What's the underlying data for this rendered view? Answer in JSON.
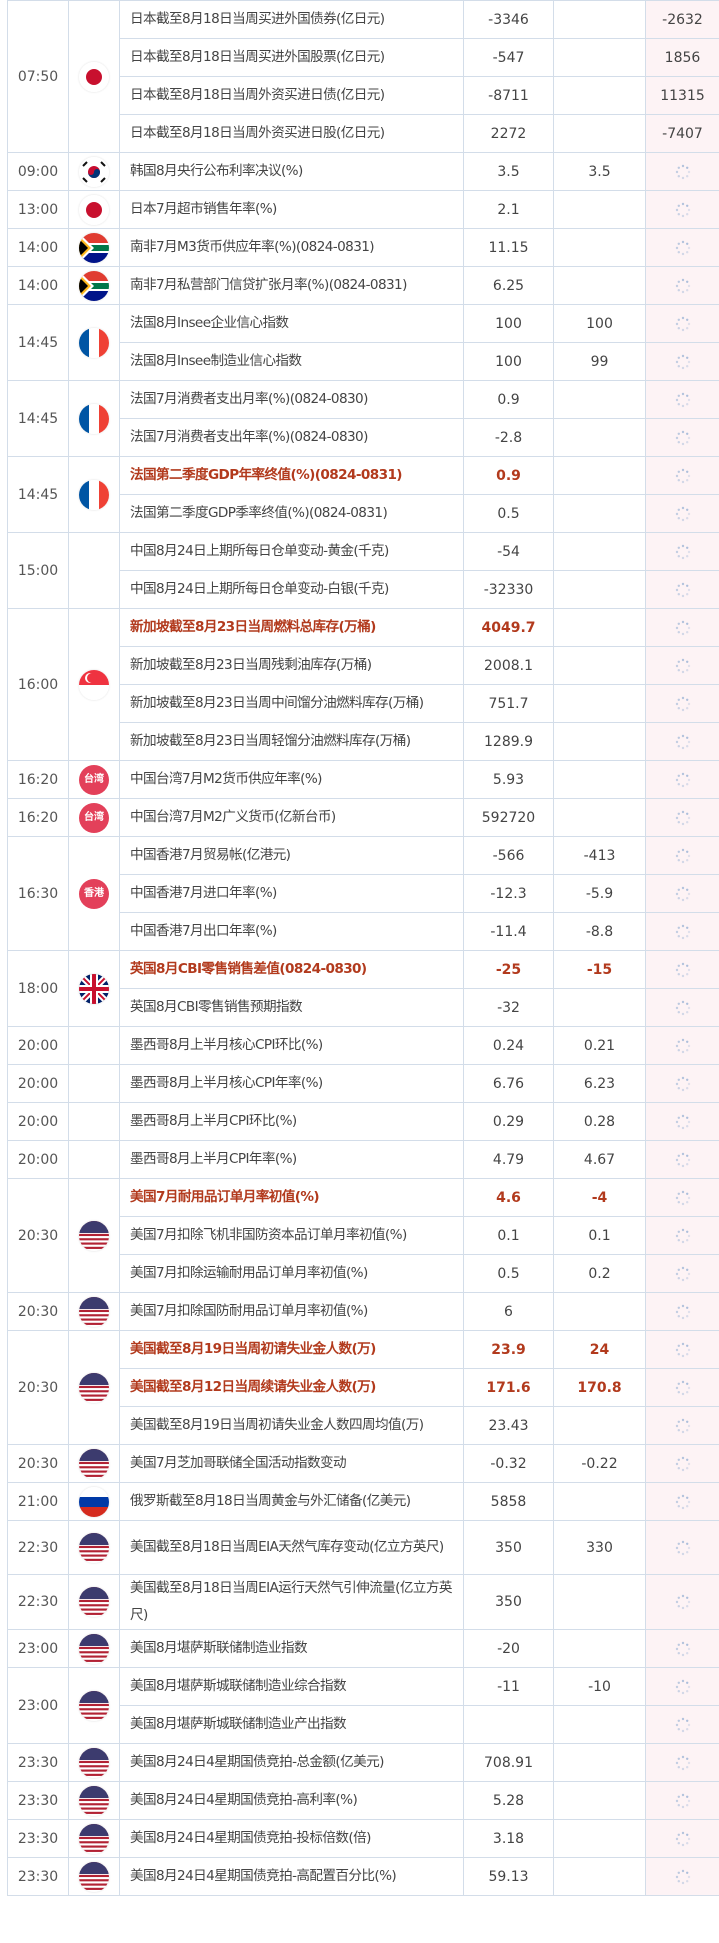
{
  "colors": {
    "important": "#b23a1d",
    "actual_bg": "#fdf3f5",
    "border": "#d3dde9",
    "badge": "#e3405a"
  },
  "pending_icon": "loading-spinner-icon",
  "groups": [
    {
      "time": "07:50",
      "flag": "japan",
      "rows": [
        {
          "name": "日本截至8月18日当周买进外国债券(亿日元)",
          "prev": "-3346",
          "forecast": "",
          "actual": "-2632"
        },
        {
          "name": "日本截至8月18日当周买进外国股票(亿日元)",
          "prev": "-547",
          "forecast": "",
          "actual": "1856"
        },
        {
          "name": "日本截至8月18日当周外资买进日债(亿日元)",
          "prev": "-8711",
          "forecast": "",
          "actual": "11315"
        },
        {
          "name": "日本截至8月18日当周外资买进日股(亿日元)",
          "prev": "2272",
          "forecast": "",
          "actual": "-7407"
        }
      ]
    },
    {
      "time": "09:00",
      "flag": "south-korea",
      "rows": [
        {
          "name": "韩国8月央行公布利率决议(%)",
          "prev": "3.5",
          "forecast": "3.5",
          "actual": ""
        }
      ]
    },
    {
      "time": "13:00",
      "flag": "japan",
      "rows": [
        {
          "name": "日本7月超市销售年率(%)",
          "prev": "2.1",
          "forecast": "",
          "actual": ""
        }
      ]
    },
    {
      "time": "14:00",
      "flag": "south-africa",
      "rows": [
        {
          "name": "南非7月M3货币供应年率(%)(0824-0831)",
          "prev": "11.15",
          "forecast": "",
          "actual": ""
        }
      ]
    },
    {
      "time": "14:00",
      "flag": "south-africa",
      "rows": [
        {
          "name": "南非7月私营部门信贷扩张月率(%)(0824-0831)",
          "prev": "6.25",
          "forecast": "",
          "actual": ""
        }
      ]
    },
    {
      "time": "14:45",
      "flag": "france",
      "rows": [
        {
          "name": "法国8月Insee企业信心指数",
          "prev": "100",
          "forecast": "100",
          "actual": ""
        },
        {
          "name": "法国8月Insee制造业信心指数",
          "prev": "100",
          "forecast": "99",
          "actual": ""
        }
      ]
    },
    {
      "time": "14:45",
      "flag": "france",
      "rows": [
        {
          "name": "法国7月消费者支出月率(%)(0824-0830)",
          "prev": "0.9",
          "forecast": "",
          "actual": ""
        },
        {
          "name": "法国7月消费者支出年率(%)(0824-0830)",
          "prev": "-2.8",
          "forecast": "",
          "actual": ""
        }
      ]
    },
    {
      "time": "14:45",
      "flag": "france",
      "rows": [
        {
          "name": "法国第二季度GDP年率终值(%)(0824-0831)",
          "prev": "0.9",
          "forecast": "",
          "actual": "",
          "important": true
        },
        {
          "name": "法国第二季度GDP季率终值(%)(0824-0831)",
          "prev": "0.5",
          "forecast": "",
          "actual": ""
        }
      ]
    },
    {
      "time": "15:00",
      "flag": "",
      "rows": [
        {
          "name": "中国8月24日上期所每日仓单变动-黄金(千克)",
          "prev": "-54",
          "forecast": "",
          "actual": ""
        },
        {
          "name": "中国8月24日上期所每日仓单变动-白银(千克)",
          "prev": "-32330",
          "forecast": "",
          "actual": ""
        }
      ]
    },
    {
      "time": "16:00",
      "flag": "singapore",
      "rows": [
        {
          "name": "新加坡截至8月23日当周燃料总库存(万桶)",
          "prev": "4049.7",
          "forecast": "",
          "actual": "",
          "important": true
        },
        {
          "name": "新加坡截至8月23日当周残剩油库存(万桶)",
          "prev": "2008.1",
          "forecast": "",
          "actual": ""
        },
        {
          "name": "新加坡截至8月23日当周中间馏分油燃料库存(万桶)",
          "prev": "751.7",
          "forecast": "",
          "actual": ""
        },
        {
          "name": "新加坡截至8月23日当周轻馏分油燃料库存(万桶)",
          "prev": "1289.9",
          "forecast": "",
          "actual": ""
        }
      ]
    },
    {
      "time": "16:20",
      "flag": "badge",
      "badge": "台湾",
      "rows": [
        {
          "name": "中国台湾7月M2货币供应年率(%)",
          "prev": "5.93",
          "forecast": "",
          "actual": ""
        }
      ]
    },
    {
      "time": "16:20",
      "flag": "badge",
      "badge": "台湾",
      "rows": [
        {
          "name": "中国台湾7月M2广义货币(亿新台币)",
          "prev": "592720",
          "forecast": "",
          "actual": ""
        }
      ]
    },
    {
      "time": "16:30",
      "flag": "badge",
      "badge": "香港",
      "rows": [
        {
          "name": "中国香港7月贸易帐(亿港元)",
          "prev": "-566",
          "forecast": "-413",
          "actual": ""
        },
        {
          "name": "中国香港7月进口年率(%)",
          "prev": "-12.3",
          "forecast": "-5.9",
          "actual": ""
        },
        {
          "name": "中国香港7月出口年率(%)",
          "prev": "-11.4",
          "forecast": "-8.8",
          "actual": ""
        }
      ]
    },
    {
      "time": "18:00",
      "flag": "uk",
      "rows": [
        {
          "name": "英国8月CBI零售销售差值(0824-0830)",
          "prev": "-25",
          "forecast": "-15",
          "actual": "",
          "important": true
        },
        {
          "name": "英国8月CBI零售销售预期指数",
          "prev": "-32",
          "forecast": "",
          "actual": ""
        }
      ]
    },
    {
      "time": "20:00",
      "flag": "",
      "rows": [
        {
          "name": "墨西哥8月上半月核心CPI环比(%)",
          "prev": "0.24",
          "forecast": "0.21",
          "actual": ""
        }
      ]
    },
    {
      "time": "20:00",
      "flag": "",
      "rows": [
        {
          "name": "墨西哥8月上半月核心CPI年率(%)",
          "prev": "6.76",
          "forecast": "6.23",
          "actual": ""
        }
      ]
    },
    {
      "time": "20:00",
      "flag": "",
      "rows": [
        {
          "name": "墨西哥8月上半月CPI环比(%)",
          "prev": "0.29",
          "forecast": "0.28",
          "actual": ""
        }
      ]
    },
    {
      "time": "20:00",
      "flag": "",
      "rows": [
        {
          "name": "墨西哥8月上半月CPI年率(%)",
          "prev": "4.79",
          "forecast": "4.67",
          "actual": ""
        }
      ]
    },
    {
      "time": "20:30",
      "flag": "usa",
      "rows": [
        {
          "name": "美国7月耐用品订单月率初值(%)",
          "prev": "4.6",
          "forecast": "-4",
          "actual": "",
          "important": true
        },
        {
          "name": "美国7月扣除飞机非国防资本品订单月率初值(%)",
          "prev": "0.1",
          "forecast": "0.1",
          "actual": ""
        },
        {
          "name": "美国7月扣除运输耐用品订单月率初值(%)",
          "prev": "0.5",
          "forecast": "0.2",
          "actual": ""
        }
      ]
    },
    {
      "time": "20:30",
      "flag": "usa",
      "rows": [
        {
          "name": "美国7月扣除国防耐用品订单月率初值(%)",
          "prev": "6",
          "forecast": "",
          "actual": ""
        }
      ]
    },
    {
      "time": "20:30",
      "flag": "usa",
      "rows": [
        {
          "name": "美国截至8月19日当周初请失业金人数(万)",
          "prev": "23.9",
          "forecast": "24",
          "actual": "",
          "important": true
        },
        {
          "name": "美国截至8月12日当周续请失业金人数(万)",
          "prev": "171.6",
          "forecast": "170.8",
          "actual": "",
          "important": true
        },
        {
          "name": "美国截至8月19日当周初请失业金人数四周均值(万)",
          "prev": "23.43",
          "forecast": "",
          "actual": ""
        }
      ]
    },
    {
      "time": "20:30",
      "flag": "usa",
      "rows": [
        {
          "name": "美国7月芝加哥联储全国活动指数变动",
          "prev": "-0.32",
          "forecast": "-0.22",
          "actual": ""
        }
      ]
    },
    {
      "time": "21:00",
      "flag": "russia",
      "rows": [
        {
          "name": "俄罗斯截至8月18日当周黄金与外汇储备(亿美元)",
          "prev": "5858",
          "forecast": "",
          "actual": ""
        }
      ]
    },
    {
      "time": "22:30",
      "flag": "usa",
      "rows": [
        {
          "name": "美国截至8月18日当周EIA天然气库存变动(亿立方英尺)",
          "prev": "350",
          "forecast": "330",
          "actual": "",
          "tall": true
        }
      ]
    },
    {
      "time": "22:30",
      "flag": "usa",
      "rows": [
        {
          "name": "美国截至8月18日当周EIA运行天然气引伸流量(亿立方英尺)",
          "prev": "350",
          "forecast": "",
          "actual": "",
          "tall": true
        }
      ]
    },
    {
      "time": "23:00",
      "flag": "usa",
      "rows": [
        {
          "name": "美国8月堪萨斯联储制造业指数",
          "prev": "-20",
          "forecast": "",
          "actual": ""
        }
      ]
    },
    {
      "time": "23:00",
      "flag": "usa",
      "rows": [
        {
          "name": "美国8月堪萨斯城联储制造业综合指数",
          "prev": "-11",
          "forecast": "-10",
          "actual": ""
        },
        {
          "name": "美国8月堪萨斯城联储制造业产出指数",
          "prev": "",
          "forecast": "",
          "actual": ""
        }
      ]
    },
    {
      "time": "23:30",
      "flag": "usa",
      "rows": [
        {
          "name": "美国8月24日4星期国债竞拍-总金额(亿美元)",
          "prev": "708.91",
          "forecast": "",
          "actual": ""
        }
      ]
    },
    {
      "time": "23:30",
      "flag": "usa",
      "rows": [
        {
          "name": "美国8月24日4星期国债竞拍-高利率(%)",
          "prev": "5.28",
          "forecast": "",
          "actual": ""
        }
      ]
    },
    {
      "time": "23:30",
      "flag": "usa",
      "rows": [
        {
          "name": "美国8月24日4星期国债竞拍-投标倍数(倍)",
          "prev": "3.18",
          "forecast": "",
          "actual": ""
        }
      ]
    },
    {
      "time": "23:30",
      "flag": "usa",
      "rows": [
        {
          "name": "美国8月24日4星期国债竞拍-高配置百分比(%)",
          "prev": "59.13",
          "forecast": "",
          "actual": ""
        }
      ]
    }
  ]
}
